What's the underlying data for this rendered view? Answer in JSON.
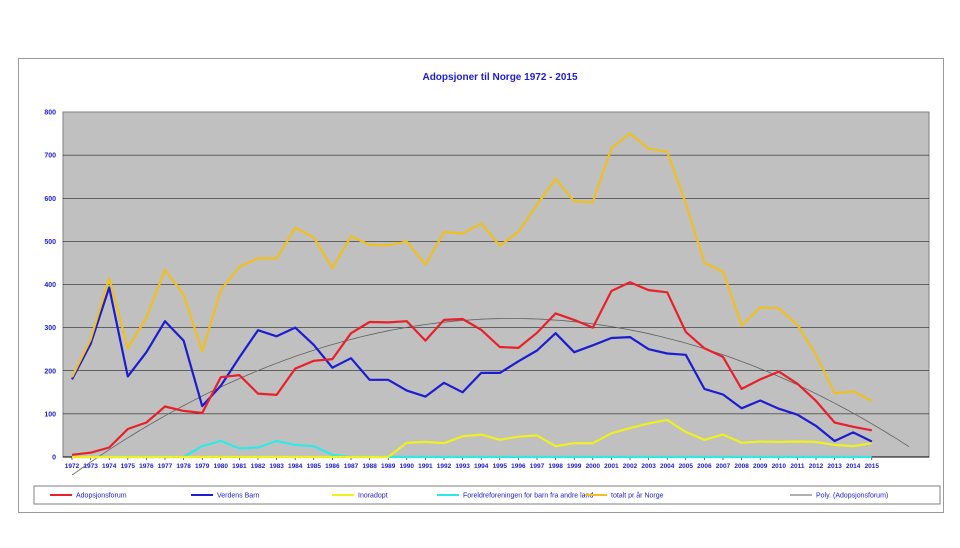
{
  "chart_data": {
    "type": "line",
    "title": "Adopsjoner til Norge 1972 - 2015",
    "xlabel": "",
    "ylabel": "",
    "ylim": [
      0,
      800
    ],
    "yticks": [
      0,
      100,
      200,
      300,
      400,
      500,
      600,
      700,
      800
    ],
    "grid": true,
    "legend_position": "bottom",
    "categories": [
      "1972",
      "1973",
      "1974",
      "1975",
      "1976",
      "1977",
      "1978",
      "1979",
      "1980",
      "1981",
      "1982",
      "1983",
      "1984",
      "1985",
      "1986",
      "1987",
      "1988",
      "1989",
      "1990",
      "1991",
      "1992",
      "1993",
      "1994",
      "1995",
      "1996",
      "1997",
      "1998",
      "1999",
      "2000",
      "2001",
      "2002",
      "2003",
      "2004",
      "2005",
      "2006",
      "2007",
      "2008",
      "2009",
      "2010",
      "2011",
      "2012",
      "2013",
      "2014",
      "2015"
    ],
    "series": [
      {
        "name": "Adopsjonsforum",
        "color": "#e8202a",
        "values": [
          5,
          10,
          22,
          65,
          80,
          117,
          107,
          102,
          185,
          190,
          147,
          144,
          205,
          223,
          227,
          287,
          313,
          312,
          315,
          270,
          318,
          320,
          295,
          255,
          253,
          288,
          333,
          318,
          300,
          385,
          405,
          387,
          382,
          290,
          252,
          232,
          158,
          180,
          198,
          170,
          130,
          80,
          70,
          62
        ]
      },
      {
        "name": "Verdens Barn",
        "color": "#1c1cd0",
        "values": [
          180,
          262,
          393,
          187,
          243,
          315,
          270,
          118,
          165,
          231,
          294,
          280,
          300,
          260,
          207,
          229,
          179,
          179,
          154,
          140,
          172,
          150,
          195,
          195,
          222,
          247,
          287,
          243,
          259,
          276,
          278,
          250,
          240,
          237,
          158,
          145,
          113,
          131,
          112,
          98,
          72,
          37,
          57,
          36
        ]
      },
      {
        "name": "Inoradopt",
        "color": "#f0f020",
        "values": [
          0,
          0,
          0,
          0,
          0,
          0,
          0,
          0,
          0,
          0,
          0,
          0,
          0,
          0,
          0,
          0,
          0,
          0,
          33,
          35,
          32,
          48,
          52,
          40,
          47,
          50,
          25,
          32,
          32,
          55,
          67,
          78,
          86,
          58,
          40,
          52,
          33,
          36,
          35,
          36,
          35,
          28,
          25,
          32
        ]
      },
      {
        "name": "Foreldreforeningen for barn fra andre land",
        "color": "#30e8e8",
        "values": [
          0,
          0,
          0,
          0,
          0,
          0,
          0,
          25,
          37,
          20,
          22,
          37,
          28,
          25,
          5,
          0,
          0,
          0,
          0,
          0,
          0,
          0,
          0,
          0,
          0,
          0,
          0,
          0,
          0,
          0,
          0,
          0,
          0,
          0,
          0,
          0,
          0,
          0,
          0,
          0,
          0,
          0,
          0,
          0
        ]
      },
      {
        "name": "totalt pr år Norge",
        "color": "#f0c020",
        "values": [
          185,
          272,
          415,
          252,
          323,
          434,
          377,
          245,
          387,
          441,
          461,
          460,
          532,
          509,
          438,
          512,
          492,
          491,
          500,
          446,
          522,
          518,
          542,
          490,
          522,
          585,
          645,
          593,
          591,
          716,
          750,
          715,
          708,
          588,
          450,
          430,
          305,
          347,
          345,
          306,
          237,
          148,
          152,
          130
        ]
      },
      {
        "name": "Poly. (Adopsjonsforum)",
        "color": "#606060",
        "type": "trendline"
      }
    ]
  }
}
